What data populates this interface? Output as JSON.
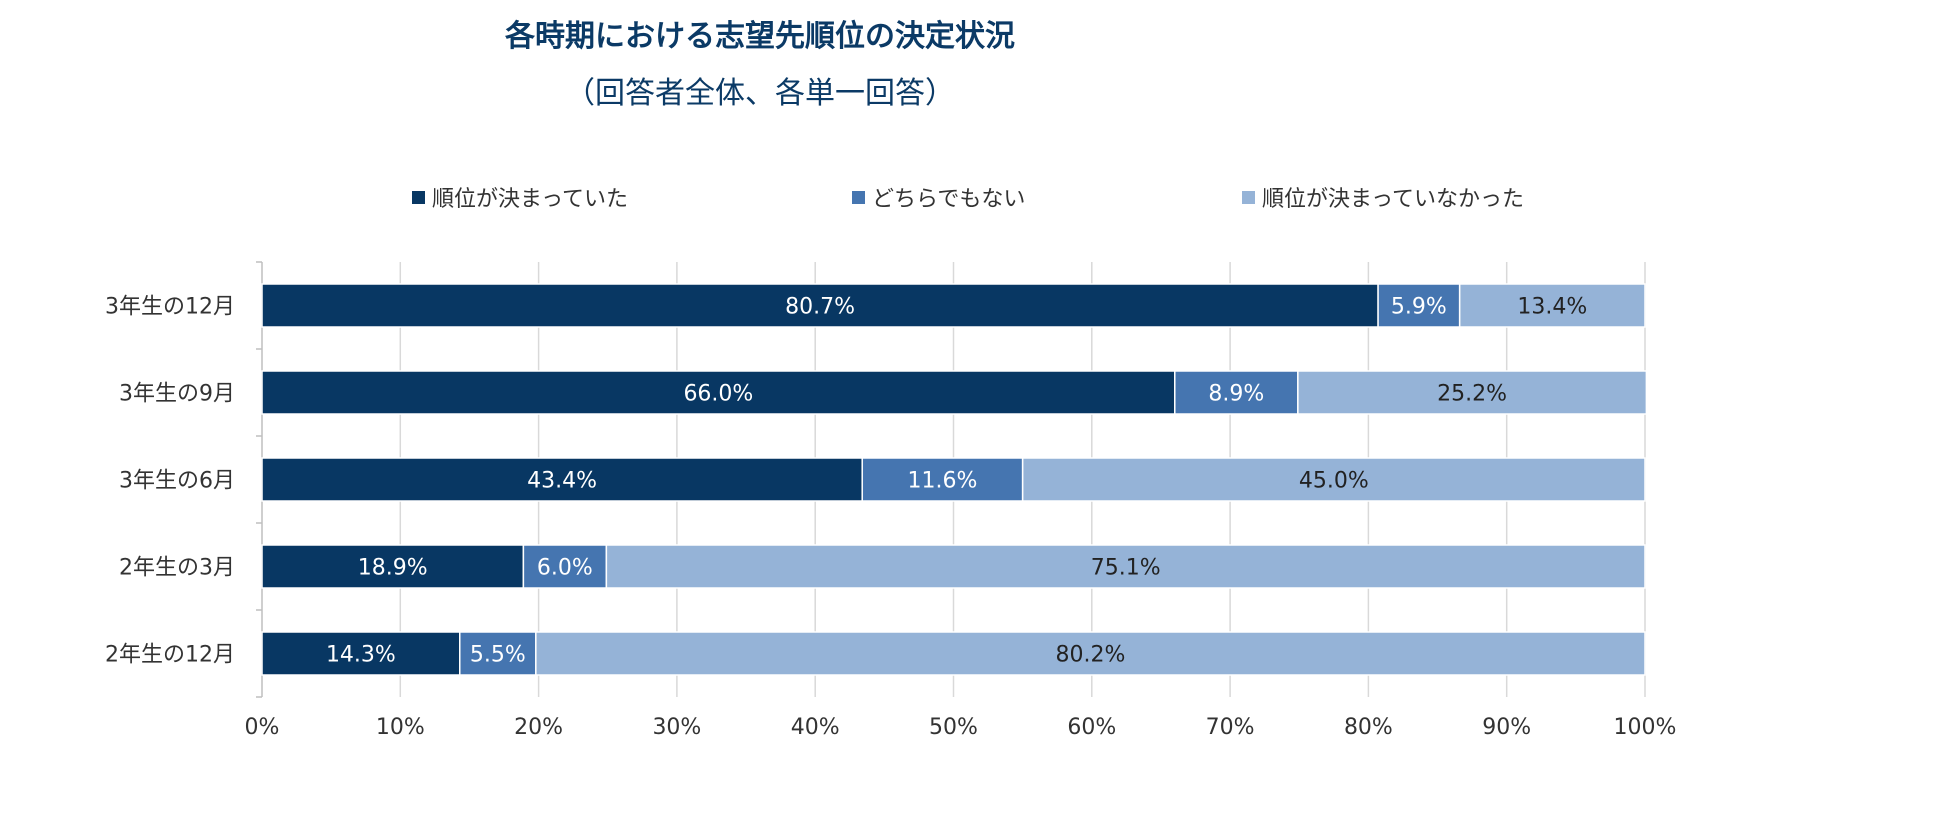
{
  "chart_data": {
    "type": "bar",
    "orientation": "horizontal",
    "stacked": "percent",
    "title": "各時期における志望先順位の決定状況",
    "subtitle": "（回答者全体、各単一回答）",
    "categories": [
      "3年生の12月",
      "3年生の9月",
      "3年生の6月",
      "2年生の3月",
      "2年生の12月"
    ],
    "series": [
      {
        "name": "順位が決まっていた",
        "color": "#083763",
        "label_color": "#ffffff",
        "values": [
          80.7,
          66.0,
          43.4,
          18.9,
          14.3
        ],
        "labels": [
          "80.7%",
          "66.0%",
          "43.4%",
          "18.9%",
          "14.3%"
        ]
      },
      {
        "name": "どちらでもない",
        "color": "#4575b0",
        "label_color": "#ffffff",
        "values": [
          5.9,
          8.9,
          11.6,
          6.0,
          5.5
        ],
        "labels": [
          "5.9%",
          "8.9%",
          "11.6%",
          "6.0%",
          "5.5%"
        ]
      },
      {
        "name": "順位が決まっていなかった",
        "color": "#95b3d7",
        "label_color": "#222222",
        "values": [
          13.4,
          25.2,
          45.0,
          75.1,
          80.2
        ],
        "labels": [
          "13.4%",
          "25.2%",
          "45.0%",
          "75.1%",
          "80.2%"
        ]
      }
    ],
    "xlim": [
      0,
      100
    ],
    "xticks": [
      "0%",
      "10%",
      "20%",
      "30%",
      "40%",
      "50%",
      "60%",
      "70%",
      "80%",
      "90%",
      "100%"
    ],
    "grid": true,
    "legend_position": "top"
  }
}
